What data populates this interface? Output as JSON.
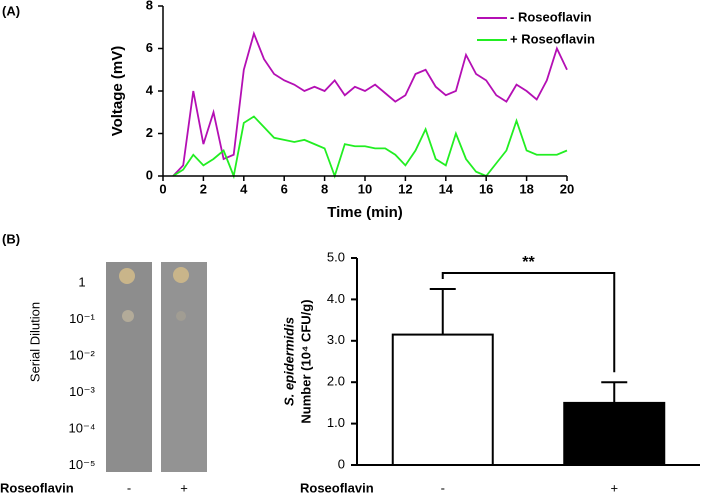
{
  "panels": [
    "(A)",
    "(B)"
  ],
  "dilution_panel": {
    "ylabel": "Serial Dilution",
    "rows": [
      "1",
      "10⁻¹",
      "10⁻²",
      "10⁻³",
      "10⁻⁴",
      "10⁻⁵"
    ],
    "columns": [
      "-",
      "+"
    ],
    "xlabel": "Roseoflavin"
  },
  "chart_data": [
    {
      "type": "line",
      "xlabel": "Time (min)",
      "ylabel": "Voltage (mV)",
      "x": [
        0,
        0.5,
        1,
        1.5,
        2,
        2.5,
        3,
        3.5,
        4,
        4.5,
        5,
        5.5,
        6,
        6.5,
        7,
        7.5,
        8,
        8.5,
        9,
        9.5,
        10,
        10.5,
        11,
        11.5,
        12,
        12.5,
        13,
        13.5,
        14,
        14.5,
        15,
        15.5,
        16,
        16.5,
        17,
        17.5,
        18,
        18.5,
        19,
        19.5,
        20
      ],
      "series": [
        {
          "name": "- Roseoflavin",
          "color": "#b40fb4",
          "values": [
            null,
            0,
            0.5,
            4.0,
            1.5,
            3.0,
            0.8,
            1.0,
            5.0,
            6.7,
            5.5,
            4.8,
            4.5,
            4.3,
            4.0,
            4.2,
            4.0,
            4.5,
            3.8,
            4.2,
            4.0,
            4.3,
            3.9,
            3.5,
            3.8,
            4.8,
            5.0,
            4.2,
            3.8,
            4.0,
            5.7,
            4.8,
            4.5,
            3.8,
            3.5,
            4.3,
            4.0,
            3.6,
            4.5,
            6.0,
            5.0
          ]
        },
        {
          "name": "+ Roseoflavin",
          "color": "#22ee22",
          "values": [
            null,
            0,
            0.3,
            1.0,
            0.5,
            0.8,
            1.2,
            0,
            2.5,
            2.8,
            2.3,
            1.8,
            1.7,
            1.6,
            1.7,
            1.5,
            1.3,
            0,
            1.5,
            1.4,
            1.4,
            1.3,
            1.3,
            1.0,
            0.5,
            1.2,
            2.2,
            0.8,
            0.5,
            2.0,
            0.8,
            0.2,
            0,
            0.6,
            1.2,
            2.6,
            1.2,
            1.0,
            1.0,
            1.0,
            1.2
          ]
        }
      ],
      "xlim": [
        0,
        20
      ],
      "xticks": [
        0,
        2,
        4,
        6,
        8,
        10,
        12,
        14,
        16,
        18,
        20
      ],
      "ylim": [
        0,
        8
      ],
      "yticks": [
        0,
        2,
        4,
        6,
        8
      ],
      "legend": "upper right"
    },
    {
      "type": "bar",
      "xlabel": "Roseoflavin",
      "ylabel": [
        "S. epidermidis",
        "Number (10⁴ CFU/g)"
      ],
      "categories": [
        "-",
        "+"
      ],
      "values": [
        3.15,
        1.5
      ],
      "errors": [
        1.1,
        0.5
      ],
      "colors": [
        "#ffffff",
        "#000000"
      ],
      "ylim": [
        0,
        5
      ],
      "yticks": [
        0,
        {
          "value": 1,
          "label": "1.0"
        },
        {
          "value": 2,
          "label": "2.0"
        },
        {
          "value": 3,
          "label": "3.0"
        },
        {
          "value": 4,
          "label": "4.0"
        },
        {
          "value": 5,
          "label": "5.0"
        }
      ],
      "annotation": "**"
    }
  ]
}
